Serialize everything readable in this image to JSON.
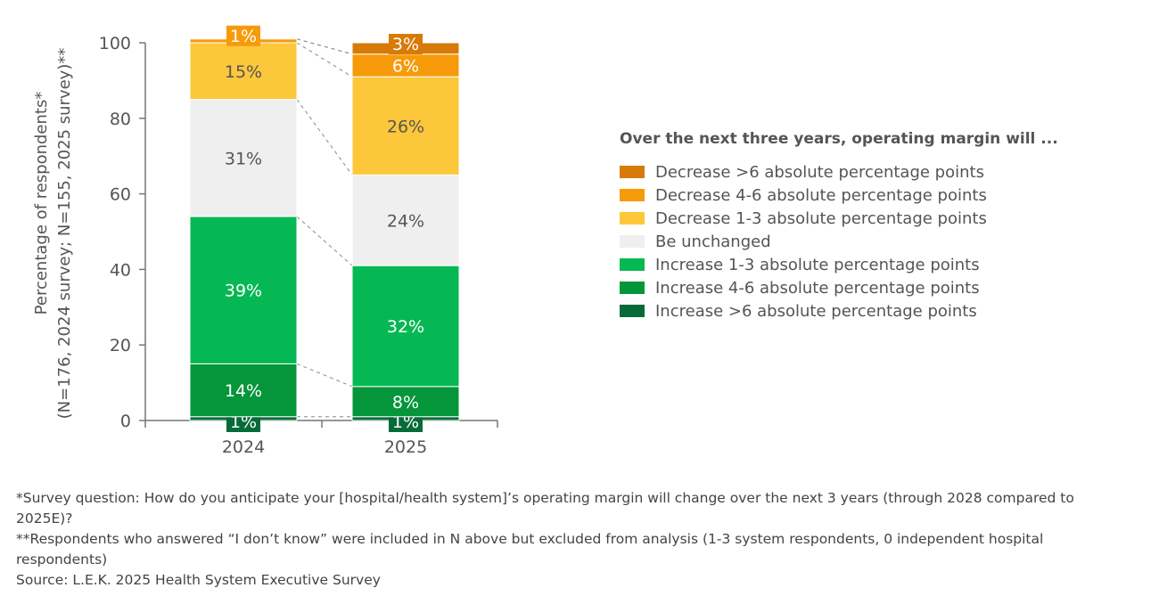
{
  "chart_data": {
    "type": "bar",
    "stacked": true,
    "categories": [
      "2024",
      "2025"
    ],
    "ylabel": "Percentage of respondents*",
    "ylabel2": "(N=176, 2024 survey; N=155, 2025 survey)**",
    "ylim": [
      0,
      100
    ],
    "yticks": [
      "0",
      "20",
      "40",
      "60",
      "80",
      "100"
    ],
    "legend_title": "Over the next three years, operating margin will ...",
    "legend_placement": "right",
    "series": [
      {
        "name": "Increase >6 absolute percentage points",
        "color": "#066B38",
        "values": [
          1,
          1
        ],
        "labels": [
          "1%",
          "1%"
        ]
      },
      {
        "name": "Increase 4-6 absolute percentage points",
        "color": "#05953B",
        "values": [
          14,
          8
        ],
        "labels": [
          "14%",
          "8%"
        ]
      },
      {
        "name": "Increase 1-3 absolute percentage points",
        "color": "#05B853",
        "values": [
          39,
          32
        ],
        "labels": [
          "39%",
          "32%"
        ]
      },
      {
        "name": "Be unchanged",
        "color": "#EFEFEF",
        "values": [
          31,
          24
        ],
        "labels": [
          "31%",
          "24%"
        ]
      },
      {
        "name": "Decrease 1-3 absolute percentage points",
        "color": "#FDC73B",
        "values": [
          15,
          26
        ],
        "labels": [
          "15%",
          "26%"
        ]
      },
      {
        "name": "Decrease 4-6 absolute percentage points",
        "color": "#F79A0A",
        "values": [
          1,
          6
        ],
        "labels": [
          "1%",
          "6%"
        ]
      },
      {
        "name": "Decrease >6 absolute percentage points",
        "color": "#D77A07",
        "values": [
          0,
          3
        ],
        "labels": [
          "",
          "3%"
        ]
      }
    ]
  },
  "notes": [
    "*Survey question: How do you anticipate your [hospital/health system]’s operating margin will change over the next 3 years (through 2028 compared to 2025E)?",
    "**Respondents who answered “I don’t know” were included in N above but excluded from analysis (1-3 system respondents, 0 independent hospital respondents)",
    "Source: L.E.K. 2025 Health System Executive Survey"
  ]
}
